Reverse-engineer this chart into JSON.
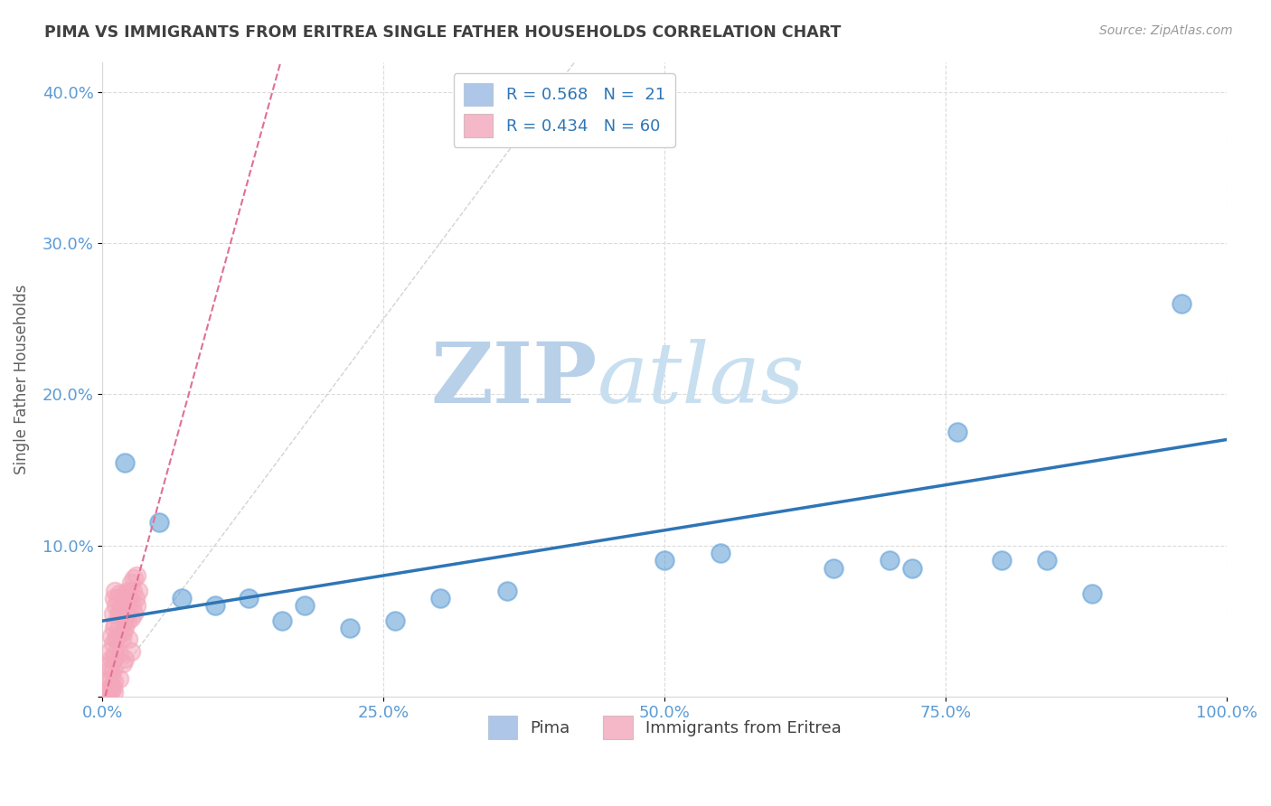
{
  "title": "PIMA VS IMMIGRANTS FROM ERITREA SINGLE FATHER HOUSEHOLDS CORRELATION CHART",
  "source": "Source: ZipAtlas.com",
  "xlabel": "",
  "ylabel": "Single Father Households",
  "xlim": [
    0,
    1.0
  ],
  "ylim": [
    0,
    0.42
  ],
  "xticks": [
    0.0,
    0.25,
    0.5,
    0.75,
    1.0
  ],
  "xtick_labels": [
    "0.0%",
    "25.0%",
    "50.0%",
    "75.0%",
    "100.0%"
  ],
  "yticks": [
    0.0,
    0.1,
    0.2,
    0.3,
    0.4
  ],
  "ytick_labels": [
    "",
    "10.0%",
    "20.0%",
    "30.0%",
    "40.0%"
  ],
  "legend_entries": [
    {
      "label": "R = 0.568   N =  21",
      "color": "#aec6e8"
    },
    {
      "label": "R = 0.434   N = 60",
      "color": "#f4b8c8"
    }
  ],
  "pima_points": [
    [
      0.02,
      0.155
    ],
    [
      0.05,
      0.115
    ],
    [
      0.07,
      0.065
    ],
    [
      0.1,
      0.06
    ],
    [
      0.13,
      0.065
    ],
    [
      0.16,
      0.05
    ],
    [
      0.18,
      0.06
    ],
    [
      0.22,
      0.045
    ],
    [
      0.26,
      0.05
    ],
    [
      0.3,
      0.065
    ],
    [
      0.36,
      0.07
    ],
    [
      0.5,
      0.09
    ],
    [
      0.55,
      0.095
    ],
    [
      0.65,
      0.085
    ],
    [
      0.7,
      0.09
    ],
    [
      0.72,
      0.085
    ],
    [
      0.76,
      0.175
    ],
    [
      0.8,
      0.09
    ],
    [
      0.84,
      0.09
    ],
    [
      0.88,
      0.068
    ],
    [
      0.96,
      0.26
    ]
  ],
  "eritrea_points": [
    [
      0.003,
      0.003
    ],
    [
      0.004,
      0.004
    ],
    [
      0.005,
      0.02
    ],
    [
      0.005,
      0.01
    ],
    [
      0.005,
      0.003
    ],
    [
      0.006,
      0.03
    ],
    [
      0.007,
      0.018
    ],
    [
      0.007,
      0.006
    ],
    [
      0.008,
      0.04
    ],
    [
      0.008,
      0.025
    ],
    [
      0.008,
      0.012
    ],
    [
      0.008,
      0.004
    ],
    [
      0.009,
      0.055
    ],
    [
      0.009,
      0.035
    ],
    [
      0.009,
      0.018
    ],
    [
      0.009,
      0.006
    ],
    [
      0.01,
      0.065
    ],
    [
      0.01,
      0.045
    ],
    [
      0.01,
      0.025
    ],
    [
      0.01,
      0.01
    ],
    [
      0.01,
      0.003
    ],
    [
      0.011,
      0.07
    ],
    [
      0.011,
      0.048
    ],
    [
      0.011,
      0.028
    ],
    [
      0.012,
      0.06
    ],
    [
      0.012,
      0.038
    ],
    [
      0.013,
      0.065
    ],
    [
      0.013,
      0.04
    ],
    [
      0.014,
      0.055
    ],
    [
      0.015,
      0.068
    ],
    [
      0.015,
      0.045
    ],
    [
      0.015,
      0.028
    ],
    [
      0.015,
      0.012
    ],
    [
      0.016,
      0.055
    ],
    [
      0.017,
      0.06
    ],
    [
      0.017,
      0.038
    ],
    [
      0.018,
      0.065
    ],
    [
      0.018,
      0.042
    ],
    [
      0.018,
      0.022
    ],
    [
      0.019,
      0.05
    ],
    [
      0.02,
      0.068
    ],
    [
      0.02,
      0.045
    ],
    [
      0.02,
      0.025
    ],
    [
      0.021,
      0.055
    ],
    [
      0.022,
      0.07
    ],
    [
      0.022,
      0.05
    ],
    [
      0.023,
      0.06
    ],
    [
      0.023,
      0.038
    ],
    [
      0.024,
      0.065
    ],
    [
      0.025,
      0.075
    ],
    [
      0.025,
      0.052
    ],
    [
      0.025,
      0.03
    ],
    [
      0.026,
      0.06
    ],
    [
      0.027,
      0.07
    ],
    [
      0.028,
      0.078
    ],
    [
      0.028,
      0.055
    ],
    [
      0.029,
      0.065
    ],
    [
      0.03,
      0.08
    ],
    [
      0.03,
      0.06
    ],
    [
      0.032,
      0.07
    ]
  ],
  "pima_color": "#5b9bd5",
  "eritrea_color": "#f4a7ba",
  "pima_line_color": "#2e75b6",
  "eritrea_line_color": "#e07090",
  "diagonal_color": "#c8c8c8",
  "background_color": "#ffffff",
  "grid_color": "#d8d8d8",
  "title_color": "#404040",
  "axis_label_color": "#5b9bd5",
  "watermark_text": "ZIP",
  "watermark_text2": "atlas",
  "watermark_color1": "#b8d0e8",
  "watermark_color2": "#c8dff0"
}
